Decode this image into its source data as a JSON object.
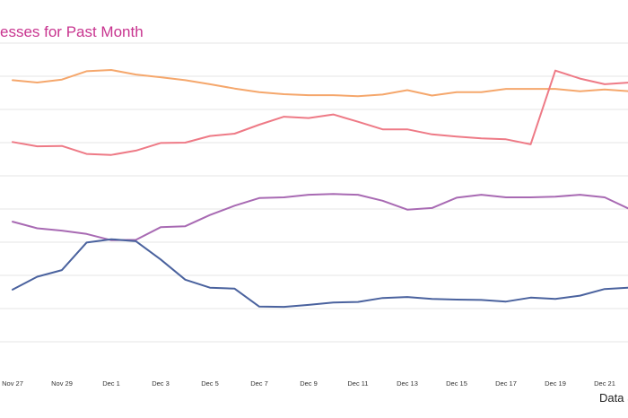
{
  "chart_data": {
    "type": "line",
    "title": "esses for Past Month",
    "source_note": "Data S",
    "xlabel": "",
    "ylabel": "",
    "grid": true,
    "legend": "none",
    "ylim": [
      0,
      100
    ],
    "y_ticks": [
      0,
      10,
      20,
      30,
      40,
      50,
      60,
      70,
      80,
      90,
      100
    ],
    "x_tick_labels": [
      "Nov 27",
      "Nov 29",
      "Dec 1",
      "Dec 3",
      "Dec 5",
      "Dec 7",
      "Dec 9",
      "Dec 11",
      "Dec 13",
      "Dec 15",
      "Dec 17",
      "Dec 19",
      "Dec 21"
    ],
    "x": [
      "Nov 27",
      "Nov 28",
      "Nov 29",
      "Nov 30",
      "Dec 1",
      "Dec 2",
      "Dec 3",
      "Dec 4",
      "Dec 5",
      "Dec 6",
      "Dec 7",
      "Dec 8",
      "Dec 9",
      "Dec 10",
      "Dec 11",
      "Dec 12",
      "Dec 13",
      "Dec 14",
      "Dec 15",
      "Dec 16",
      "Dec 17",
      "Dec 18",
      "Dec 19",
      "Dec 20",
      "Dec 21",
      "Dec 22"
    ],
    "series": [
      {
        "color": "#f5a76c",
        "values": [
          88.8,
          88.1,
          89.0,
          91.5,
          91.9,
          90.5,
          89.7,
          88.8,
          87.6,
          86.3,
          85.2,
          84.6,
          84.3,
          84.3,
          84.0,
          84.5,
          85.8,
          84.2,
          85.2,
          85.2,
          86.2,
          86.2,
          86.2,
          85.5,
          86.0,
          85.5
        ]
      },
      {
        "color": "#ee7a86",
        "values": [
          70.2,
          68.9,
          69.0,
          66.6,
          66.3,
          67.6,
          69.9,
          70.0,
          72.0,
          72.7,
          75.4,
          77.8,
          77.4,
          78.5,
          76.3,
          74.0,
          74.0,
          72.5,
          71.8,
          71.3,
          71.0,
          69.5,
          91.7,
          89.3,
          87.6,
          88.1
        ]
      },
      {
        "color": "#a86ab3",
        "values": [
          46.2,
          44.2,
          43.5,
          42.5,
          40.6,
          40.7,
          44.5,
          44.8,
          48.2,
          51.0,
          53.3,
          53.5,
          54.3,
          54.5,
          54.3,
          52.5,
          49.8,
          50.3,
          53.4,
          54.3,
          53.5,
          53.5,
          53.7,
          54.3,
          53.5,
          50.0
        ]
      },
      {
        "color": "#4a629e",
        "values": [
          25.7,
          29.6,
          31.6,
          39.9,
          40.9,
          40.3,
          34.8,
          28.7,
          26.3,
          26.0,
          20.6,
          20.5,
          21.1,
          21.8,
          22.0,
          23.2,
          23.5,
          22.9,
          22.7,
          22.6,
          22.1,
          23.3,
          22.9,
          23.9,
          25.9,
          26.3
        ]
      }
    ]
  }
}
